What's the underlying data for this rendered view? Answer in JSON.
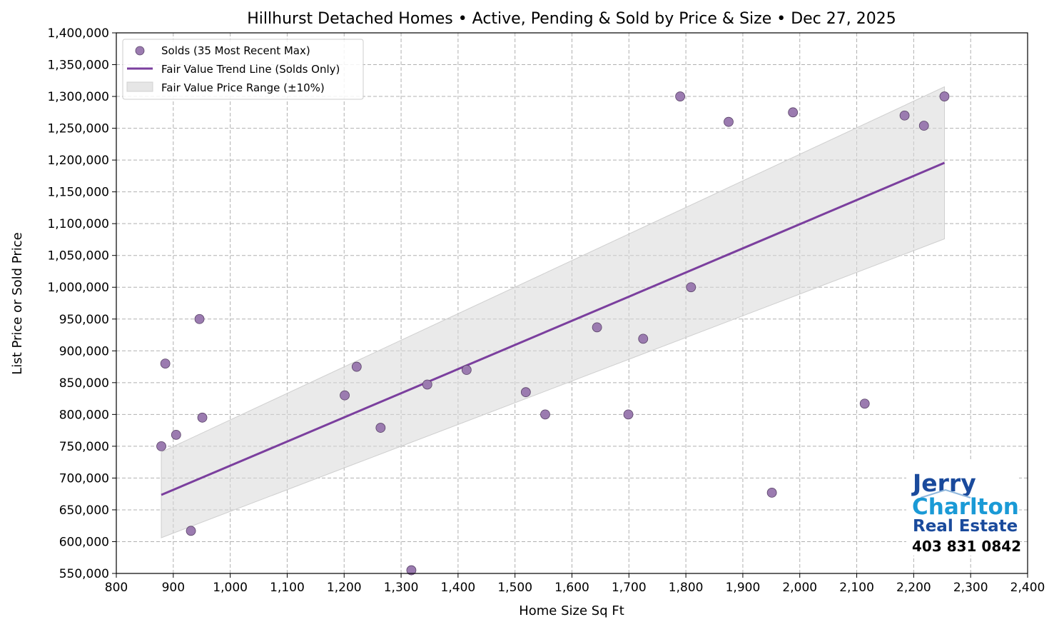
{
  "chart_data": {
    "type": "scatter",
    "title": "Hillhurst Detached Homes • Active, Pending & Sold by Price & Size • Dec 27, 2025",
    "xlabel": "Home Size Sq Ft",
    "ylabel": "List Price or Sold Price",
    "xlim": [
      800,
      2400
    ],
    "ylim": [
      550000,
      1400000
    ],
    "xticks": [
      800,
      900,
      1000,
      1100,
      1200,
      1300,
      1400,
      1500,
      1600,
      1700,
      1800,
      1900,
      2000,
      2100,
      2200,
      2300,
      2400
    ],
    "yticks": [
      550000,
      600000,
      650000,
      700000,
      750000,
      800000,
      850000,
      900000,
      950000,
      1000000,
      1050000,
      1100000,
      1150000,
      1200000,
      1250000,
      1300000,
      1350000,
      1400000
    ],
    "grid": true,
    "legend_placement": "top-left",
    "series": [
      {
        "name": "Solds (35 Most Recent Max)",
        "kind": "scatter",
        "color": "#9b7bb0",
        "points": [
          [
            879,
            750000
          ],
          [
            905,
            768000
          ],
          [
            886,
            880000
          ],
          [
            931,
            617000
          ],
          [
            946,
            950000
          ],
          [
            951,
            795000
          ],
          [
            1201,
            830000
          ],
          [
            1222,
            875000
          ],
          [
            1264,
            779000
          ],
          [
            1318,
            555000
          ],
          [
            1346,
            847000
          ],
          [
            1415,
            870000
          ],
          [
            1519,
            835000
          ],
          [
            1553,
            800000
          ],
          [
            1644,
            937000
          ],
          [
            1699,
            800000
          ],
          [
            1725,
            919000
          ],
          [
            1790,
            1300000
          ],
          [
            1809,
            1000000
          ],
          [
            1875,
            1260000
          ],
          [
            1951,
            677000
          ],
          [
            1988,
            1275000
          ],
          [
            2114,
            817000
          ],
          [
            2184,
            1270000
          ],
          [
            2218,
            1254000
          ],
          [
            2254,
            1300000
          ]
        ]
      },
      {
        "name": "Fair Value Trend Line (Solds Only)",
        "kind": "line",
        "color": "#7b3f9e",
        "points": [
          [
            879,
            673500
          ],
          [
            2254,
            1195600
          ]
        ]
      },
      {
        "name": "Fair Value Price Range (±10%)",
        "kind": "band",
        "color": "#d9d9d9",
        "pct": 10
      }
    ]
  },
  "logo": {
    "line1": "Jerry",
    "line2": "Charlton",
    "line3": "Real Estate",
    "phone": "403 831 0842",
    "colors": {
      "dark_blue": "#1a4a9c",
      "light_blue": "#1a9ad6"
    }
  }
}
